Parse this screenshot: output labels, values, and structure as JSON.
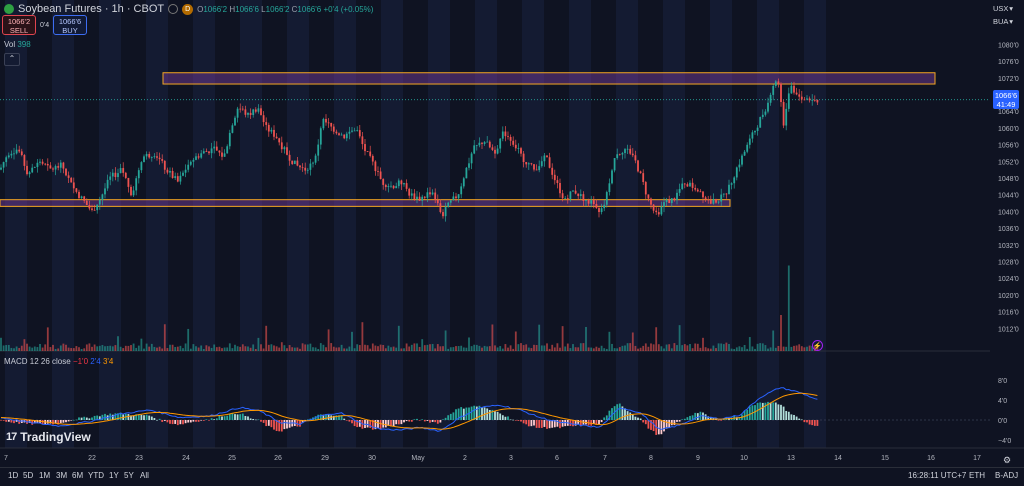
{
  "header": {
    "title": "Soybean Futures · 1h · CBOT",
    "badge": "D",
    "ohlc": {
      "o_label": "O",
      "o": "1066'2",
      "h_label": "H",
      "h": "1066'6",
      "l_label": "L",
      "l": "1066'2",
      "c_label": "C",
      "c": "1066'6",
      "change": "+0'4 (+0.05%)"
    }
  },
  "trade": {
    "sell_price": "1066'2",
    "sell_label": "SELL",
    "spread": "0'4",
    "buy_price": "1066'6",
    "buy_label": "BUY"
  },
  "volume_indicator": {
    "label": "Vol",
    "value": "398"
  },
  "macd_indicator": {
    "label": "MACD 12 26 close",
    "v1": "−1'0",
    "v2": "2'4",
    "v3": "3'4"
  },
  "right_panel": {
    "currency": "USX",
    "unit": "BUA"
  },
  "price_tag": {
    "price": "1066'6",
    "countdown": "41:49"
  },
  "logo": "TradingView",
  "bottom": {
    "ranges": [
      "1D",
      "5D",
      "1M",
      "3M",
      "6M",
      "YTD",
      "1Y",
      "5Y",
      "All"
    ],
    "clock": "16:28:11 UTC+7",
    "session": "ETH",
    "adjust": "B-ADJ"
  },
  "colors": {
    "up": "#26a69a",
    "down": "#ef5350",
    "macd": "#2962ff",
    "signal": "#ff9800",
    "zone": "#f5a623",
    "zone_fill": "#7b3fa0"
  },
  "chart_data": {
    "type": "candlestick",
    "ylim": [
      1008,
      1082
    ],
    "price_ticks": [
      "1080'0",
      "1076'0",
      "1072'0",
      "1068'0",
      "1064'0",
      "1060'0",
      "1056'0",
      "1052'0",
      "1048'0",
      "1044'0",
      "1040'0",
      "1036'0",
      "1032'0",
      "1028'0",
      "1024'0",
      "1020'0",
      "1016'0",
      "1012'0"
    ],
    "price_tick_values": [
      1080,
      1076,
      1072,
      1068,
      1064,
      1060,
      1056,
      1052,
      1048,
      1044,
      1040,
      1036,
      1032,
      1028,
      1024,
      1020,
      1016,
      1012
    ],
    "x_ticks": [
      "7",
      "22",
      "23",
      "24",
      "25",
      "26",
      "29",
      "30",
      "May",
      "2",
      "3",
      "6",
      "7",
      "8",
      "9",
      "10",
      "13",
      "14",
      "15",
      "16",
      "17"
    ],
    "macd_ticks": [
      "8'0",
      "4'0",
      "0'0",
      "−4'0"
    ],
    "macd_tick_values": [
      8,
      4,
      0,
      -4
    ],
    "last_price": 1066.75,
    "zones": [
      {
        "from": 1070.5,
        "to": 1073.2
      },
      {
        "from": 1041.2,
        "to": 1042.8
      }
    ],
    "path": [
      [
        0,
        1050
      ],
      [
        8,
        1054
      ],
      [
        18,
        1055
      ],
      [
        28,
        1049
      ],
      [
        40,
        1052
      ],
      [
        50,
        1050
      ],
      [
        62,
        1051
      ],
      [
        72,
        1046
      ],
      [
        82,
        1043
      ],
      [
        92,
        1040
      ],
      [
        100,
        1043
      ],
      [
        110,
        1048
      ],
      [
        122,
        1050
      ],
      [
        132,
        1044
      ],
      [
        142,
        1053
      ],
      [
        155,
        1054
      ],
      [
        166,
        1050
      ],
      [
        178,
        1047
      ],
      [
        190,
        1052
      ],
      [
        202,
        1054
      ],
      [
        214,
        1055
      ],
      [
        224,
        1053
      ],
      [
        232,
        1061
      ],
      [
        238,
        1065
      ],
      [
        248,
        1063
      ],
      [
        258,
        1065
      ],
      [
        266,
        1060
      ],
      [
        276,
        1058
      ],
      [
        286,
        1054
      ],
      [
        296,
        1051
      ],
      [
        306,
        1050
      ],
      [
        316,
        1053
      ],
      [
        322,
        1062
      ],
      [
        332,
        1060
      ],
      [
        344,
        1058
      ],
      [
        356,
        1060
      ],
      [
        364,
        1055
      ],
      [
        374,
        1051
      ],
      [
        382,
        1047
      ],
      [
        392,
        1046
      ],
      [
        402,
        1047
      ],
      [
        410,
        1044
      ],
      [
        420,
        1043
      ],
      [
        432,
        1045
      ],
      [
        442,
        1039
      ],
      [
        450,
        1042
      ],
      [
        458,
        1044
      ],
      [
        466,
        1050
      ],
      [
        474,
        1055
      ],
      [
        484,
        1057
      ],
      [
        494,
        1054
      ],
      [
        504,
        1059
      ],
      [
        512,
        1057
      ],
      [
        522,
        1053
      ],
      [
        534,
        1050
      ],
      [
        546,
        1053
      ],
      [
        556,
        1047
      ],
      [
        564,
        1043
      ],
      [
        574,
        1045
      ],
      [
        584,
        1043
      ],
      [
        592,
        1042
      ],
      [
        600,
        1039
      ],
      [
        606,
        1043
      ],
      [
        614,
        1053
      ],
      [
        624,
        1055
      ],
      [
        632,
        1054
      ],
      [
        640,
        1049
      ],
      [
        648,
        1043
      ],
      [
        656,
        1039
      ],
      [
        664,
        1042
      ],
      [
        674,
        1043
      ],
      [
        684,
        1047
      ],
      [
        692,
        1046
      ],
      [
        700,
        1045
      ],
      [
        710,
        1042
      ],
      [
        720,
        1043
      ],
      [
        728,
        1045
      ],
      [
        736,
        1050
      ],
      [
        744,
        1054
      ],
      [
        752,
        1058
      ],
      [
        760,
        1062
      ],
      [
        768,
        1066
      ],
      [
        772,
        1070
      ],
      [
        778,
        1072
      ],
      [
        784,
        1060
      ],
      [
        790,
        1071
      ],
      [
        796,
        1068
      ],
      [
        804,
        1067
      ],
      [
        812,
        1067
      ],
      [
        818,
        1066
      ]
    ],
    "volume_spikes": [
      {
        "x": 787,
        "value": 95
      },
      {
        "x": 780,
        "value": 40
      },
      {
        "x": 265,
        "value": 28
      },
      {
        "x": 362,
        "value": 32
      }
    ],
    "macd_path": [
      [
        0,
        0.5
      ],
      [
        30,
        -0.5
      ],
      [
        60,
        -1.2
      ],
      [
        90,
        -0.3
      ],
      [
        120,
        1.2
      ],
      [
        150,
        2.0
      ],
      [
        180,
        0.5
      ],
      [
        210,
        0.8
      ],
      [
        240,
        2.5
      ],
      [
        260,
        1.8
      ],
      [
        280,
        -0.5
      ],
      [
        300,
        -0.8
      ],
      [
        320,
        0.8
      ],
      [
        340,
        1.5
      ],
      [
        360,
        -0.5
      ],
      [
        380,
        -1.8
      ],
      [
        400,
        -2.0
      ],
      [
        420,
        -1.5
      ],
      [
        440,
        -2.2
      ],
      [
        460,
        0.5
      ],
      [
        480,
        2.5
      ],
      [
        500,
        3.0
      ],
      [
        520,
        2.0
      ],
      [
        540,
        0.5
      ],
      [
        560,
        -0.5
      ],
      [
        580,
        -1.0
      ],
      [
        600,
        -1.5
      ],
      [
        620,
        2.5
      ],
      [
        640,
        1.5
      ],
      [
        660,
        -2.0
      ],
      [
        680,
        -1.0
      ],
      [
        700,
        0.8
      ],
      [
        720,
        0.2
      ],
      [
        740,
        1.0
      ],
      [
        760,
        4.5
      ],
      [
        780,
        6.5
      ],
      [
        800,
        5.5
      ],
      [
        818,
        4.0
      ]
    ]
  }
}
